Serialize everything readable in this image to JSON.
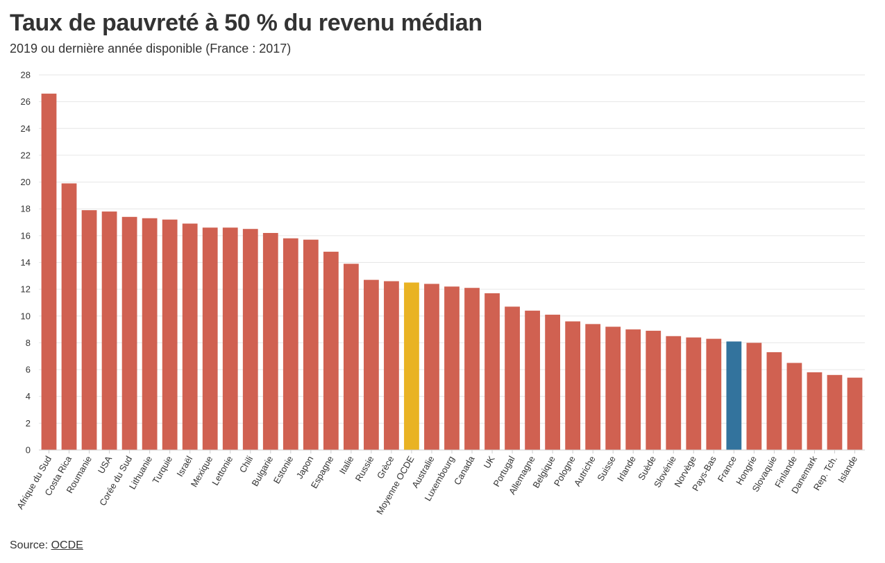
{
  "header": {
    "title": "Taux de pauvreté à 50 % du revenu médian",
    "subtitle": "2019 ou dernière année disponible (France : 2017)"
  },
  "footer": {
    "source_label": "Source: ",
    "source_link": "OCDE"
  },
  "colors": {
    "default": "#d06151",
    "oecd_average": "#e9b323",
    "france": "#33739d",
    "grid": "#e6e6e6"
  },
  "chart_data": {
    "type": "bar",
    "title": "Taux de pauvreté à 50 % du revenu médian",
    "subtitle": "2019 ou dernière année disponible (France : 2017)",
    "xlabel": "",
    "ylabel": "",
    "ylim": [
      0,
      28
    ],
    "yticks": [
      0,
      2,
      4,
      6,
      8,
      10,
      12,
      14,
      16,
      18,
      20,
      22,
      24,
      26,
      28
    ],
    "grid": true,
    "categories": [
      "Afrique du Sud",
      "Costa Rica",
      "Roumanie",
      "USA",
      "Corée du Sud",
      "Lithuanie",
      "Turquie",
      "Israël",
      "Mexique",
      "Lettonie",
      "Chili",
      "Bulgarie",
      "Estonie",
      "Japon",
      "Espagne",
      "Italie",
      "Russie",
      "Grèce",
      "Moyenne OCDE",
      "Australie",
      "Luxembourg",
      "Canada",
      "UK",
      "Portugal",
      "Allemagne",
      "Belgique",
      "Pologne",
      "Autriche",
      "Suisse",
      "Irlande",
      "Suède",
      "Slovénie",
      "Norvège",
      "Pays-Bas",
      "France",
      "Hongrie",
      "Slovaquie",
      "Finlande",
      "Danemark",
      "Rep. Tch.",
      "Islande"
    ],
    "values": [
      26.6,
      19.9,
      17.9,
      17.8,
      17.4,
      17.3,
      17.2,
      16.9,
      16.6,
      16.6,
      16.5,
      16.2,
      15.8,
      15.7,
      14.8,
      13.9,
      12.7,
      12.6,
      12.5,
      12.4,
      12.2,
      12.1,
      11.7,
      10.7,
      10.4,
      10.1,
      9.6,
      9.4,
      9.2,
      9.0,
      8.9,
      8.5,
      8.4,
      8.3,
      8.1,
      8.0,
      7.3,
      6.5,
      5.8,
      5.6,
      5.4
    ],
    "highlights": {
      "Moyenne OCDE": "oecd_average",
      "France": "france"
    }
  }
}
